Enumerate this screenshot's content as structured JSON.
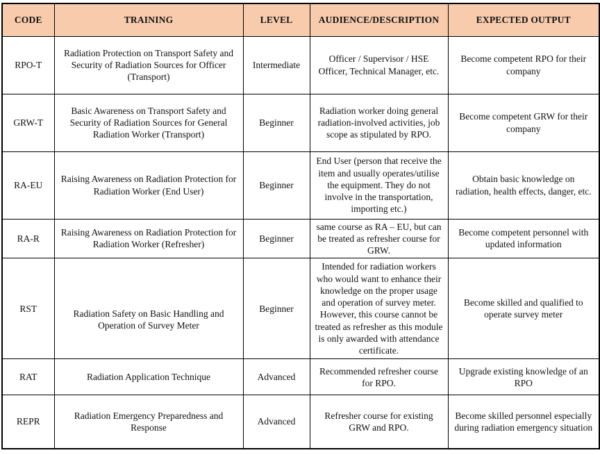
{
  "colors": {
    "header_bg": "#F8CBAD",
    "border": "#000000",
    "text": "#111111"
  },
  "table": {
    "headers": [
      {
        "label": "CODE"
      },
      {
        "label": "TRAINING"
      },
      {
        "label": "LEVEL"
      },
      {
        "label": "AUDIENCE/DESCRIPTION"
      },
      {
        "label": "EXPECTED OUTPUT"
      }
    ],
    "rows": [
      {
        "code": "RPO-T",
        "training": "Radiation Protection on Transport Safety and Security of Radiation Sources for Officer (Transport)",
        "level": "Intermediate",
        "audience": "Officer / Supervisor / HSE Officer, Technical Manager, etc.",
        "output": "Become competent RPO for their company"
      },
      {
        "code": "GRW-T",
        "training": "Basic Awareness on Transport Safety and Security of Radiation Sources for General Radiation Worker (Transport)",
        "level": "Beginner",
        "audience": "Radiation worker doing general radiation-involved activities, job scope as stipulated by RPO.",
        "output": "Become competent GRW for their company"
      },
      {
        "code": "RA-EU",
        "training": "Raising Awareness on Radiation Protection for Radiation Worker (End User)",
        "level": "Beginner",
        "audience": "End User (person that receive the item and usually operates/utilise the equipment. They do not involve in the transportation, importing etc.)",
        "output": "Obtain basic knowledge on radiation, health effects, danger, etc."
      },
      {
        "code": "RA-R",
        "training": "Raising Awareness on Radiation Protection for Radiation Worker (Refresher)",
        "level": "Beginner",
        "audience": "same course as RA – EU, but can be treated as refresher course for GRW.",
        "output": "Become competent personnel with updated information"
      },
      {
        "code": "RST",
        "training": "Radiation Safety on Basic Handling and Operation of Survey Meter",
        "level": "Beginner",
        "audience": "Intended for radiation workers who would want to enhance their knowledge on the proper usage and operation of survey meter. However, this course cannot be treated as refresher as this module is only awarded with attendance certificate.",
        "output": "Become skilled and qualified to operate survey meter"
      },
      {
        "code": "RAT",
        "training": "Radiation Application Technique",
        "level": "Advanced",
        "audience": "Recommended refresher course for RPO.",
        "output": "Upgrade existing knowledge of an RPO"
      },
      {
        "code": "REPR",
        "training": "Radiation Emergency Preparedness and Response",
        "level": "Advanced",
        "audience": "Refresher course for existing GRW and RPO.",
        "output": "Become skilled personnel especially during radiation emergency situation"
      }
    ]
  }
}
